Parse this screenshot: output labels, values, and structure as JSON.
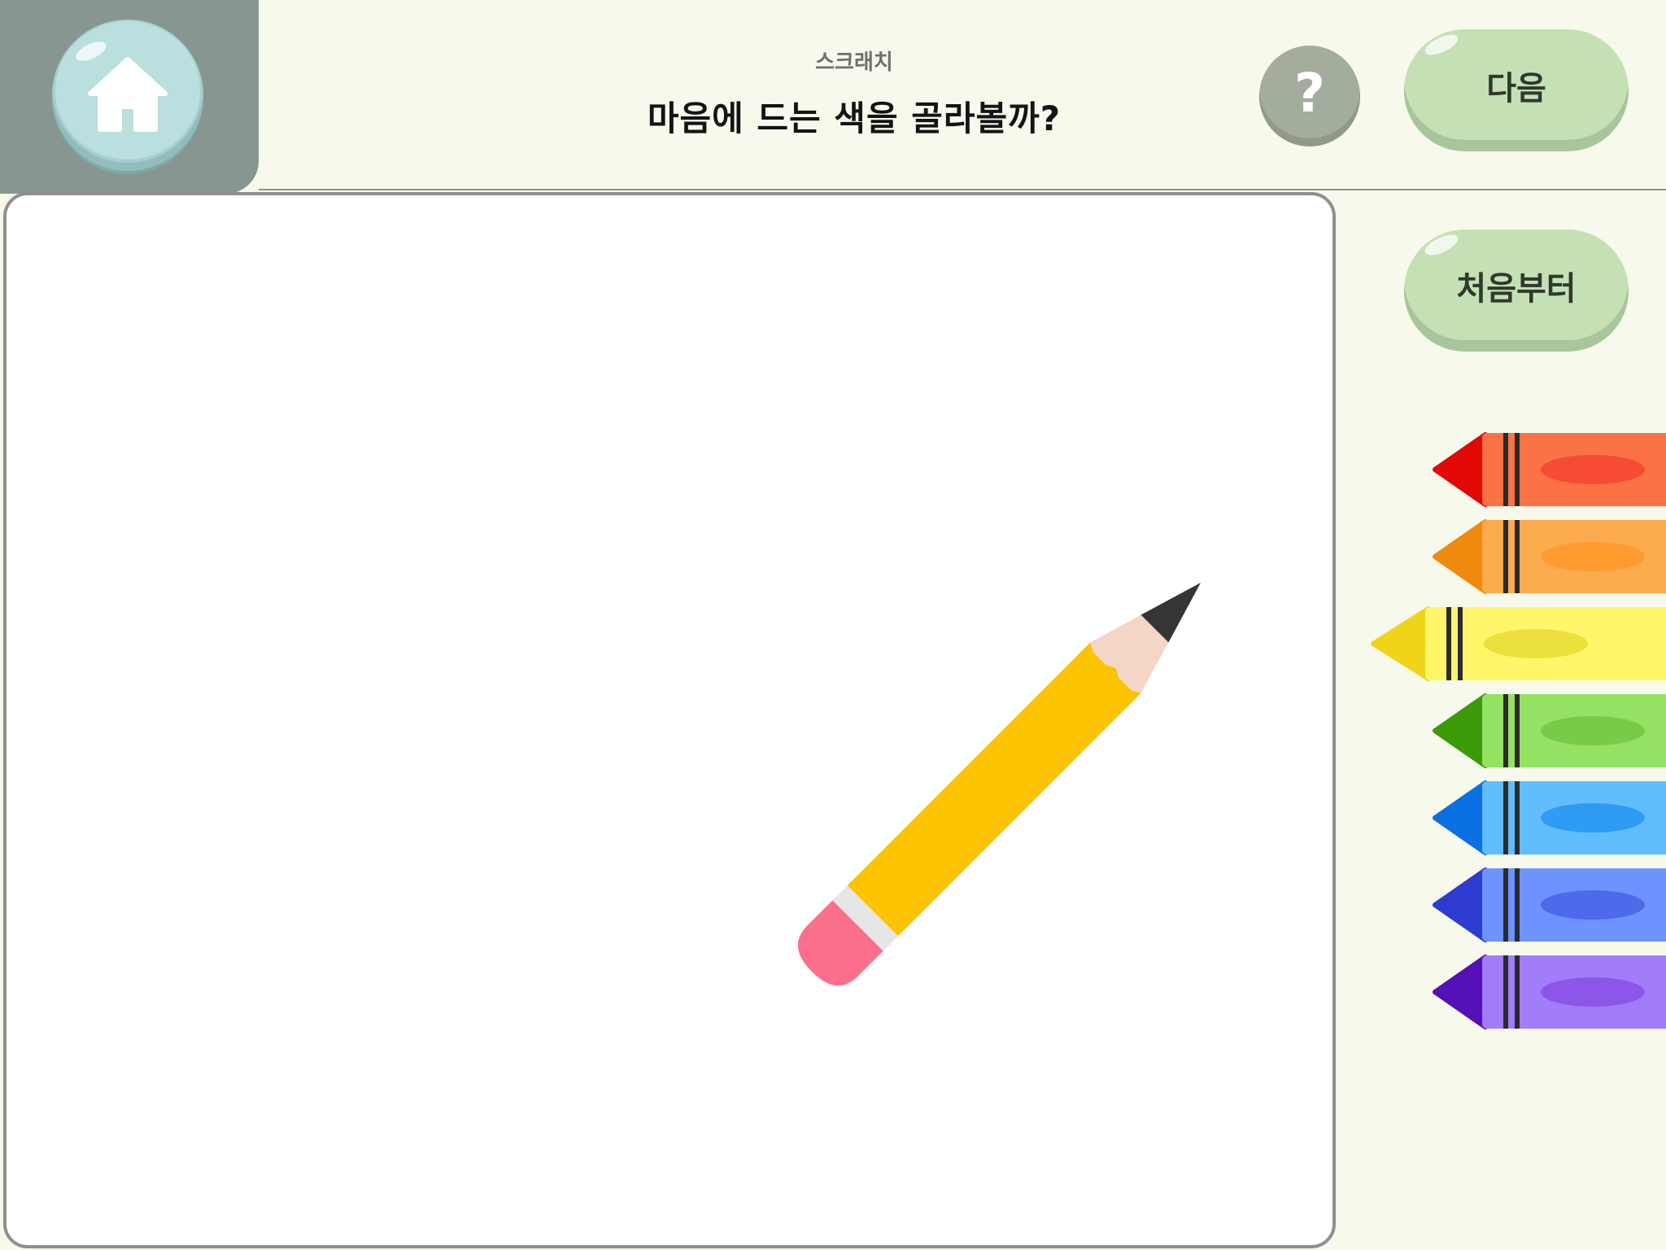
{
  "header": {
    "subtitle": "스크래치",
    "title": "마음에 드는 색을 골라볼까?"
  },
  "buttons": {
    "home_icon": "home-icon",
    "help_label": "?",
    "next_label": "다음",
    "reset_label": "처음부터"
  },
  "crayons": [
    {
      "name": "red",
      "body": "#fb7246",
      "tip": "#e10806",
      "oval": "#f54c33"
    },
    {
      "name": "orange",
      "body": "#fdab4f",
      "tip": "#ef8a0c",
      "oval": "#ff9b2e"
    },
    {
      "name": "yellow",
      "body": "#fff66a",
      "tip": "#efd41a",
      "oval": "#ebe03c"
    },
    {
      "name": "green",
      "body": "#95e163",
      "tip": "#3b9a07",
      "oval": "#78cb48"
    },
    {
      "name": "blue",
      "body": "#61bdfe",
      "tip": "#0a6fe2",
      "oval": "#2e9bf5"
    },
    {
      "name": "indigo",
      "body": "#6e93ff",
      "tip": "#2e3bd0",
      "oval": "#4e69ea"
    },
    {
      "name": "violet",
      "body": "#a17dfb",
      "tip": "#5510b7",
      "oval": "#8c56e8"
    }
  ],
  "colors": {
    "background": "#f6f9eb",
    "home_tab": "#879690",
    "button_green": "#c6e0b6",
    "help_gray": "#a3ad9e",
    "pencil_body": "#fcc300",
    "eraser": "#fb6f8c"
  }
}
